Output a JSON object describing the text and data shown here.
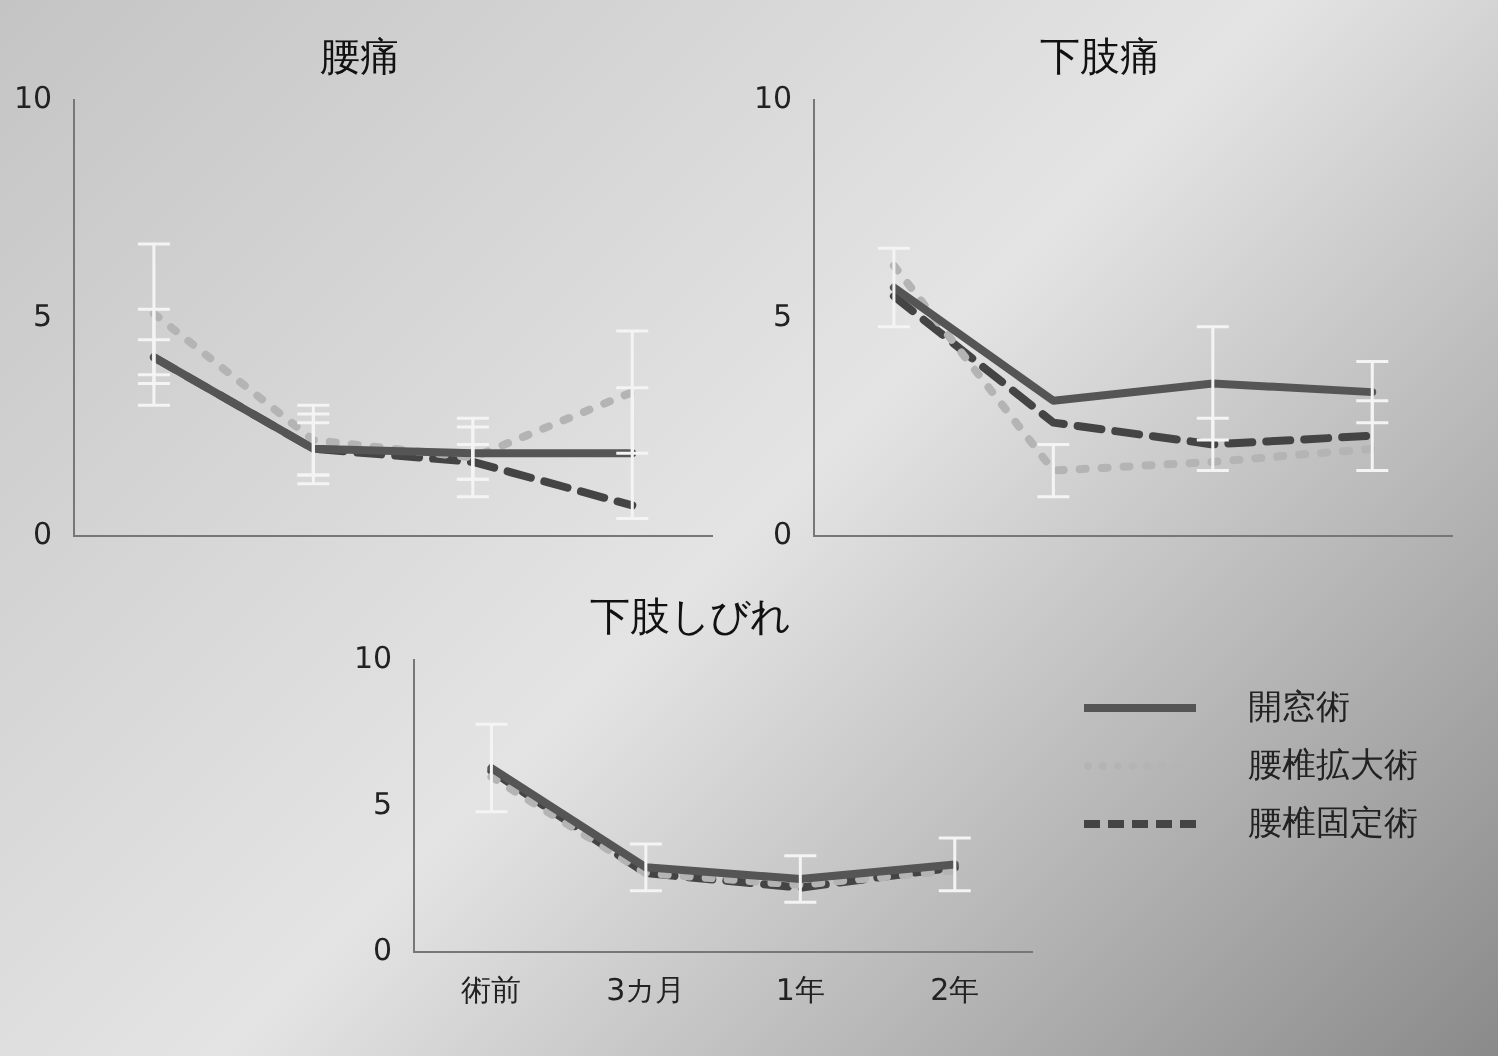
{
  "chart_data": [
    {
      "type": "line",
      "title": "腰痛",
      "categories": [
        null,
        null,
        null,
        null
      ],
      "ylim": [
        0,
        10
      ],
      "yticks": [
        0,
        5,
        10
      ],
      "tick_labels": "y",
      "grid": false,
      "marker": "none",
      "series": [
        {
          "color": "#555555",
          "line_style": "solid",
          "values": [
            4.1,
            2.0,
            1.9,
            1.9
          ],
          "errors": [
            1.1,
            0.8,
            0.6,
            1.5
          ]
        },
        {
          "color": "#b4b4b4",
          "line_style": "dotted",
          "values": [
            5.1,
            2.2,
            1.8,
            3.3
          ],
          "errors": [
            1.6,
            0.8,
            0.9,
            1.4
          ]
        },
        {
          "color": "#444444",
          "line_style": "dashed",
          "values": [
            4.1,
            2.0,
            1.7,
            0.7
          ],
          "errors": [
            0.4,
            0.6,
            0.4,
            null
          ]
        }
      ]
    },
    {
      "type": "line",
      "title": "下肢痛",
      "categories": [
        null,
        null,
        null,
        null
      ],
      "ylim": [
        0,
        10
      ],
      "yticks": [
        0,
        5,
        10
      ],
      "tick_labels": "y",
      "grid": false,
      "marker": "none",
      "series": [
        {
          "color": "#555555",
          "line_style": "solid",
          "values": [
            5.7,
            3.1,
            3.5,
            3.3
          ],
          "errors": [
            0.9,
            null,
            1.3,
            0.7
          ]
        },
        {
          "color": "#b4b4b4",
          "line_style": "dotted",
          "values": [
            6.2,
            1.5,
            1.7,
            2.0
          ],
          "errors": [
            null,
            0.6,
            null,
            null
          ]
        },
        {
          "color": "#444444",
          "line_style": "dashed",
          "values": [
            5.5,
            2.6,
            2.1,
            2.3
          ],
          "errors": [
            null,
            null,
            0.6,
            0.8
          ]
        }
      ]
    },
    {
      "type": "line",
      "title": "下肢しびれ",
      "categories": [
        "術前",
        "3カ月",
        "1年",
        "2年"
      ],
      "ylim": [
        0,
        10
      ],
      "yticks": [
        0,
        5,
        10
      ],
      "grid": false,
      "legend": "right",
      "marker": "none",
      "series": [
        {
          "name": "開窓術",
          "color": "#555555",
          "line_style": "solid",
          "values": [
            6.3,
            2.9,
            2.5,
            3.0
          ],
          "errors": [
            1.5,
            0.8,
            0.8,
            0.9
          ]
        },
        {
          "name": "腰椎拡大術",
          "color": "#b4b4b4",
          "line_style": "dotted",
          "values": [
            6.0,
            2.7,
            2.3,
            2.8
          ],
          "errors": [
            null,
            null,
            null,
            null
          ]
        },
        {
          "name": "腰椎固定術",
          "color": "#444444",
          "line_style": "dashed",
          "values": [
            6.2,
            2.7,
            2.2,
            2.9
          ],
          "errors": [
            null,
            null,
            null,
            null
          ]
        }
      ]
    }
  ]
}
